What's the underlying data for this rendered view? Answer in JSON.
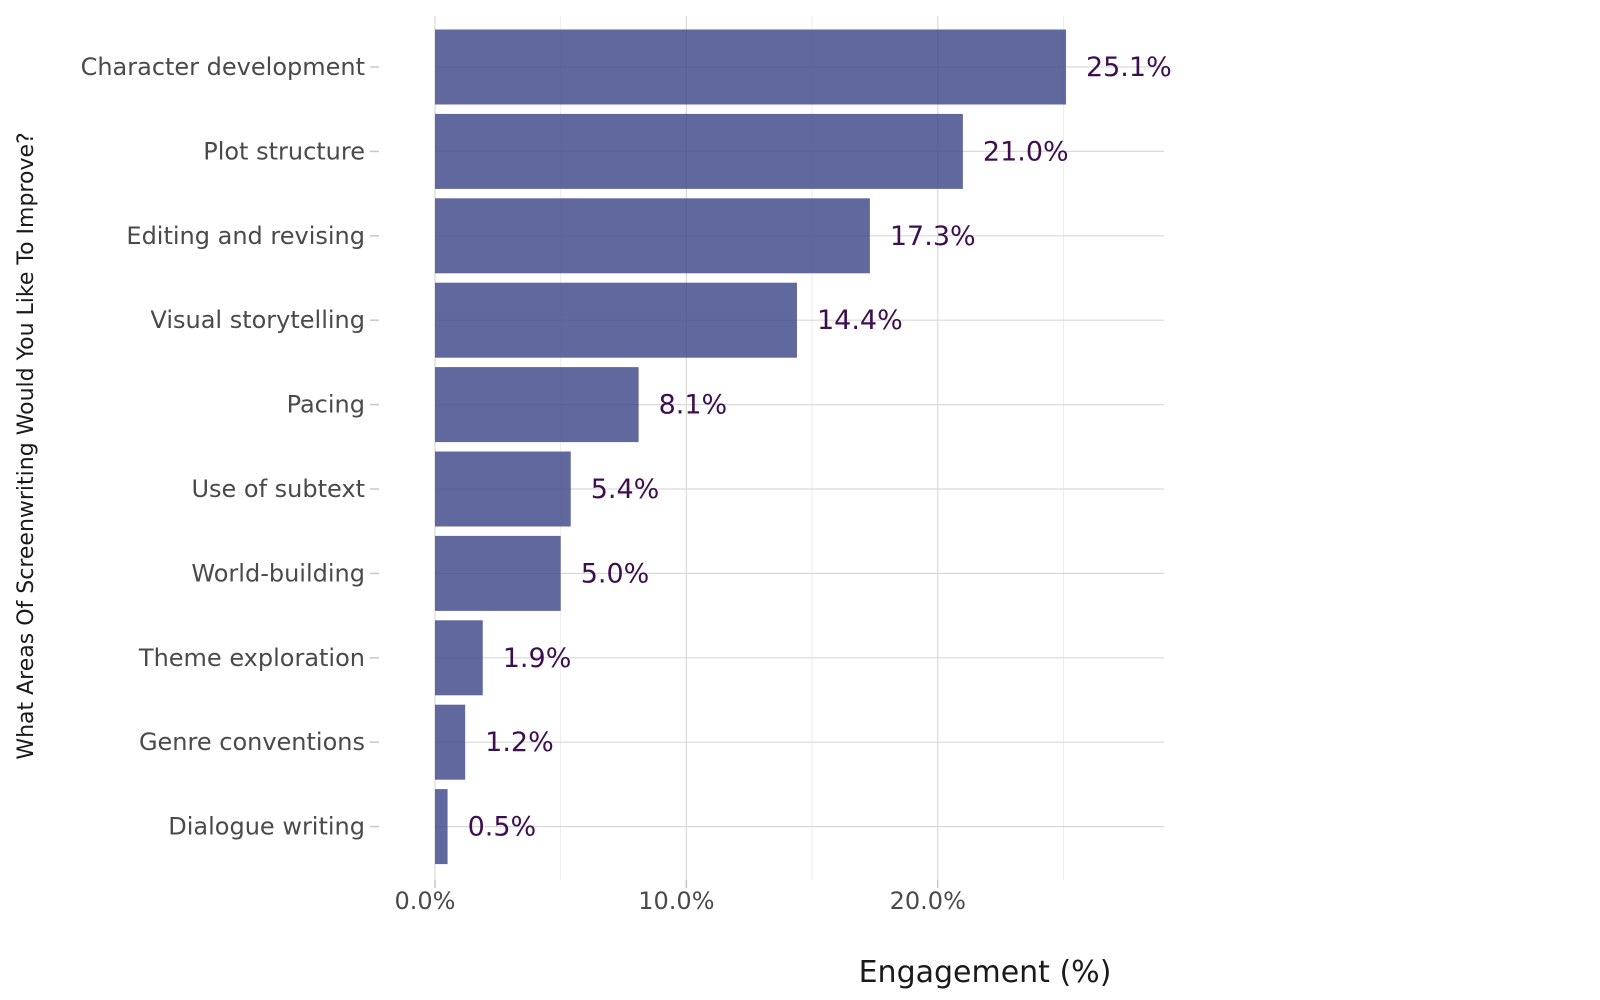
{
  "chart_data": {
    "type": "bar",
    "orientation": "horizontal",
    "categories": [
      "Character development",
      "Plot structure",
      "Editing and revising",
      "Visual storytelling",
      "Pacing",
      "Use of subtext",
      "World-building",
      "Theme exploration",
      "Genre conventions",
      "Dialogue writing"
    ],
    "values": [
      25.1,
      21.0,
      17.3,
      14.4,
      8.1,
      5.4,
      5.0,
      1.9,
      1.2,
      0.5
    ],
    "value_labels": [
      "25.1%",
      "21.0%",
      "17.3%",
      "14.4%",
      "8.1%",
      "5.4%",
      "5.0%",
      "1.9%",
      "1.2%",
      "0.5%"
    ],
    "xlabel": "Engagement (%)",
    "ylabel": "What Areas Of Screenwriting Would You Like To Improve?",
    "xlim": [
      0,
      29
    ],
    "xticks": [
      0,
      10,
      20
    ],
    "xtick_labels": [
      "0.0%",
      "10.0%",
      "20.0%"
    ],
    "grid": true,
    "bar_color": "#4a518e",
    "value_label_color": "#3d0f4f"
  }
}
